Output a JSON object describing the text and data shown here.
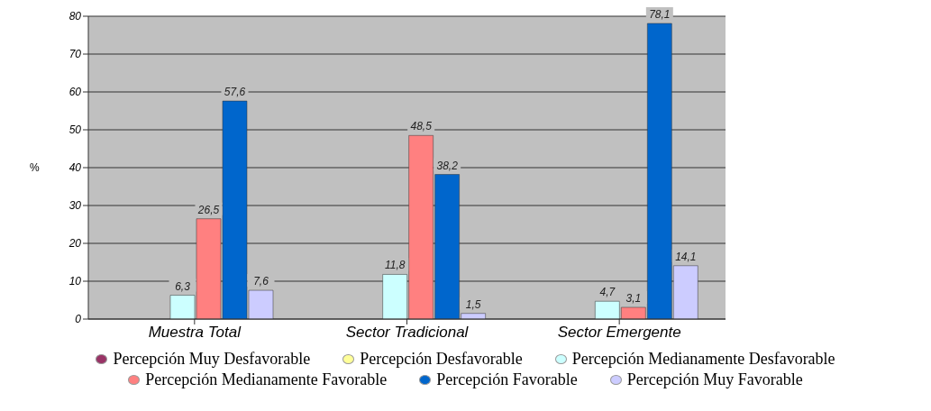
{
  "chart_data": {
    "type": "bar",
    "ylabel": "%",
    "categories": [
      "Muestra Total",
      "Sector Tradicional",
      "Sector Emergente"
    ],
    "series": [
      {
        "name": "Percepción Muy Desfavorable",
        "color": "#993366",
        "values": [
          0,
          0,
          0
        ],
        "value_labels": [
          null,
          null,
          null
        ]
      },
      {
        "name": "Percepción Desfavorable",
        "color": "#ffff99",
        "values": [
          0,
          0,
          0
        ],
        "value_labels": [
          null,
          null,
          null
        ]
      },
      {
        "name": "Percepción Medianamente Desfavorable",
        "color": "#ccffff",
        "values": [
          6.3,
          11.8,
          4.7
        ],
        "value_labels": [
          "6,3",
          "11,8",
          "4,7"
        ]
      },
      {
        "name": "Percepción Medianamente Favorable",
        "color": "#ff8080",
        "values": [
          26.5,
          48.5,
          3.1
        ],
        "value_labels": [
          "26,5",
          "48,5",
          "3,1"
        ]
      },
      {
        "name": "Percepción Favorable",
        "color": "#0066cc",
        "values": [
          57.6,
          38.2,
          78.1
        ],
        "value_labels": [
          "57,6",
          "38,2",
          "78,1"
        ]
      },
      {
        "name": "Percepción Muy Favorable",
        "color": "#ccccff",
        "values": [
          7.6,
          1.5,
          14.1
        ],
        "value_labels": [
          "7,6",
          "1,5",
          "14,1"
        ]
      }
    ],
    "ylim": [
      0,
      80
    ],
    "yticks": [
      0,
      10,
      20,
      30,
      40,
      50,
      60,
      70,
      80
    ],
    "grid": "y",
    "legend": "bottom"
  }
}
